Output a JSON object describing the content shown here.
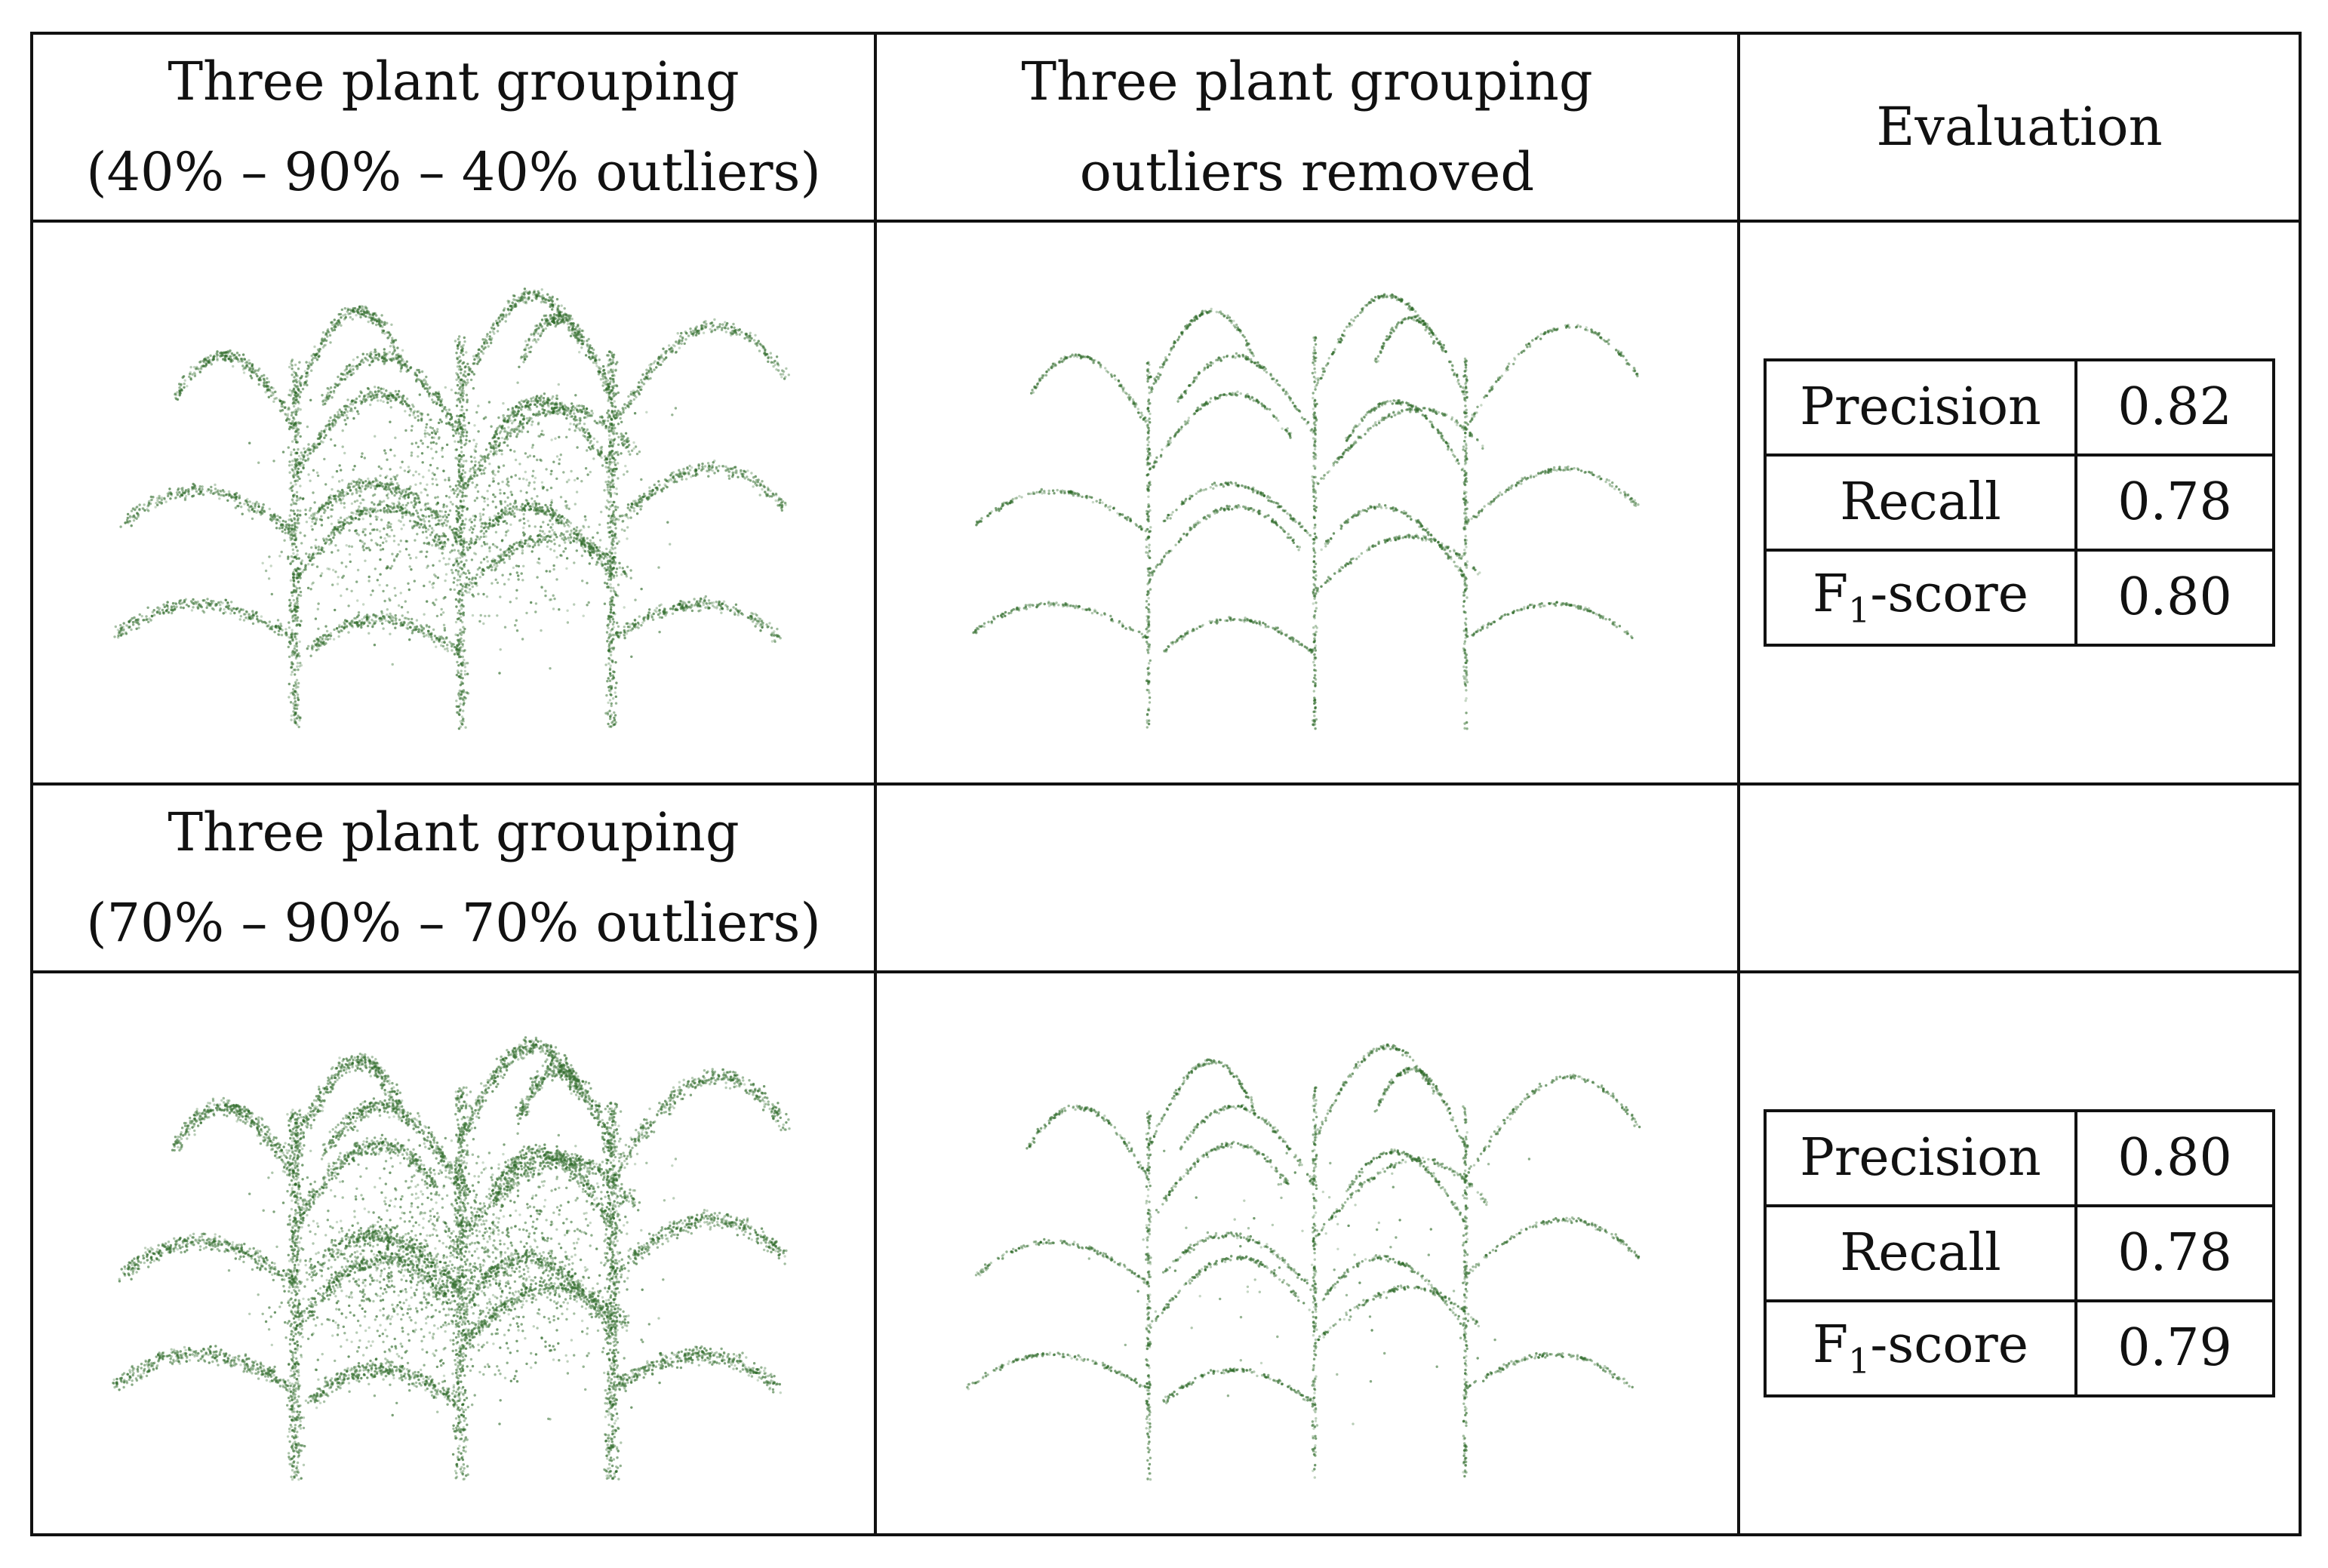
{
  "header": {
    "col1_line1": "Three plant grouping",
    "col1_line2": "(40% – 90% – 40% outliers)",
    "col2_line1": "Three plant grouping",
    "col2_line2": "outliers removed",
    "col3": "Evaluation"
  },
  "row2_header": {
    "line1": "Three plant grouping",
    "line2": "(70% – 90% – 70% outliers)"
  },
  "eval1": {
    "precision_label": "Precision",
    "precision": "0.82",
    "recall_label": "Recall",
    "recall": "0.78",
    "f1_prefix": "F",
    "f1_sub": "1",
    "f1_suffix": "-score",
    "f1": "0.80"
  },
  "eval2": {
    "precision_label": "Precision",
    "precision": "0.80",
    "recall_label": "Recall",
    "recall": "0.78",
    "f1_prefix": "F",
    "f1_sub": "1",
    "f1_suffix": "-score",
    "f1": "0.79"
  },
  "colors": {
    "plant_green": "#2f6b2a",
    "rule": "#111111"
  }
}
